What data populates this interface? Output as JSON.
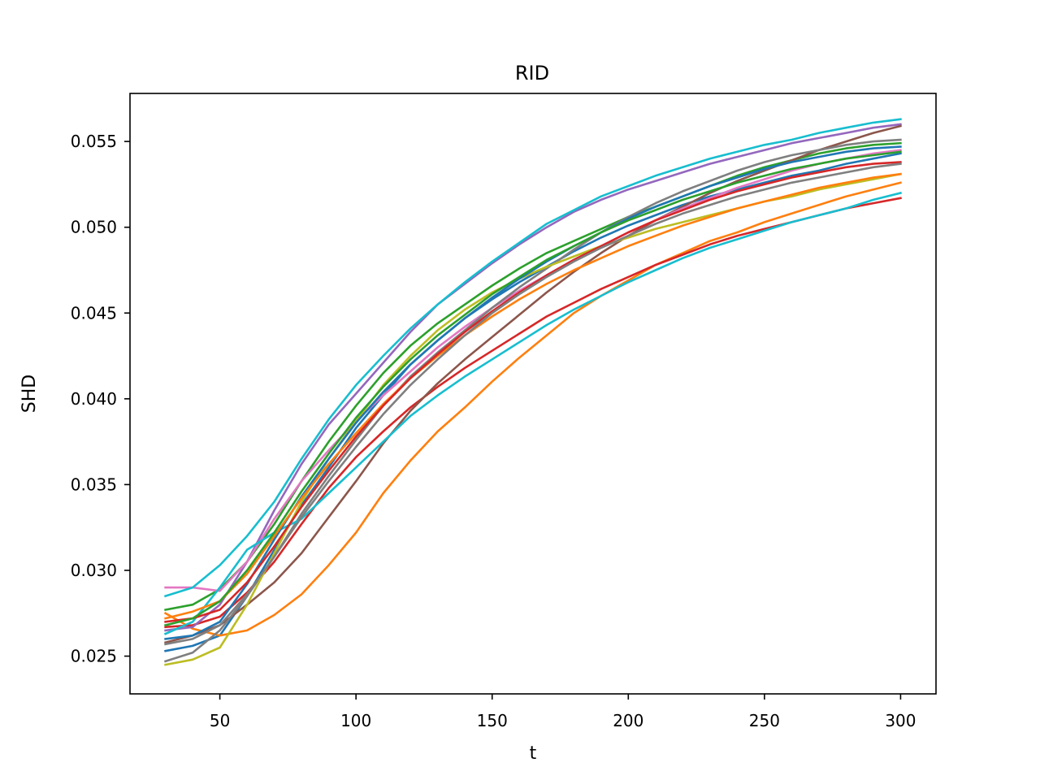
{
  "chart_data": {
    "type": "line",
    "title": "RID",
    "xlabel": "t",
    "ylabel": "SHD",
    "xlim": [
      17,
      313
    ],
    "ylim": [
      0.0228,
      0.0578
    ],
    "xticks": [
      "50",
      "100",
      "150",
      "200",
      "250",
      "300"
    ],
    "yticks": [
      "0.025",
      "0.030",
      "0.035",
      "0.040",
      "0.045",
      "0.050",
      "0.055"
    ],
    "grid": false,
    "legend": "none",
    "x": [
      30,
      40,
      50,
      60,
      70,
      80,
      90,
      100,
      110,
      120,
      130,
      140,
      150,
      160,
      170,
      180,
      190,
      200,
      210,
      220,
      230,
      240,
      250,
      260,
      270,
      280,
      290,
      300
    ],
    "series": [
      {
        "color": "#1f77b4",
        "values": [
          0.0253,
          0.0256,
          0.0262,
          0.0285,
          0.0312,
          0.0338,
          0.036,
          0.0383,
          0.0402,
          0.042,
          0.0434,
          0.0447,
          0.0458,
          0.0468,
          0.0477,
          0.0486,
          0.0494,
          0.0501,
          0.0507,
          0.0513,
          0.0518,
          0.0522,
          0.0526,
          0.053,
          0.0533,
          0.0537,
          0.054,
          0.0543
        ]
      },
      {
        "color": "#ff7f0e",
        "values": [
          0.0275,
          0.0266,
          0.0262,
          0.0265,
          0.0274,
          0.0286,
          0.0303,
          0.0322,
          0.0345,
          0.0364,
          0.0381,
          0.0395,
          0.041,
          0.0424,
          0.0437,
          0.045,
          0.046,
          0.0469,
          0.0478,
          0.0485,
          0.0492,
          0.0497,
          0.0503,
          0.0508,
          0.0513,
          0.0518,
          0.0522,
          0.0526
        ]
      },
      {
        "color": "#2ca02c",
        "values": [
          0.0277,
          0.028,
          0.0289,
          0.0305,
          0.0327,
          0.0352,
          0.0375,
          0.0396,
          0.0415,
          0.0431,
          0.0444,
          0.0455,
          0.0466,
          0.0476,
          0.0485,
          0.0492,
          0.0499,
          0.0506,
          0.0512,
          0.0518,
          0.0524,
          0.053,
          0.0535,
          0.0539,
          0.0543,
          0.0546,
          0.0548,
          0.0549
        ]
      },
      {
        "color": "#d62728",
        "values": [
          0.0267,
          0.0268,
          0.0273,
          0.0287,
          0.0305,
          0.0327,
          0.0348,
          0.0366,
          0.0381,
          0.0395,
          0.0407,
          0.0418,
          0.0428,
          0.0438,
          0.0448,
          0.0456,
          0.0464,
          0.0471,
          0.0478,
          0.0484,
          0.049,
          0.0495,
          0.0499,
          0.0503,
          0.0507,
          0.0511,
          0.0514,
          0.0517
        ]
      },
      {
        "color": "#9467bd",
        "values": [
          0.0265,
          0.0267,
          0.028,
          0.0305,
          0.0335,
          0.0362,
          0.0385,
          0.0403,
          0.0421,
          0.0439,
          0.0455,
          0.0467,
          0.0479,
          0.049,
          0.05,
          0.0509,
          0.0516,
          0.0522,
          0.0527,
          0.0532,
          0.0537,
          0.0541,
          0.0545,
          0.0549,
          0.0552,
          0.0555,
          0.0558,
          0.056
        ]
      },
      {
        "color": "#8c564b",
        "values": [
          0.0258,
          0.0262,
          0.0268,
          0.028,
          0.0293,
          0.031,
          0.0331,
          0.0352,
          0.0374,
          0.0393,
          0.0409,
          0.0423,
          0.0436,
          0.0449,
          0.0462,
          0.0474,
          0.0485,
          0.0495,
          0.0504,
          0.0512,
          0.052,
          0.0527,
          0.0533,
          0.0539,
          0.0545,
          0.055,
          0.0555,
          0.0559
        ]
      },
      {
        "color": "#e377c2",
        "values": [
          0.029,
          0.029,
          0.0288,
          0.0305,
          0.033,
          0.0352,
          0.037,
          0.0387,
          0.0402,
          0.0416,
          0.043,
          0.0442,
          0.0453,
          0.0463,
          0.0472,
          0.0481,
          0.0489,
          0.0497,
          0.0504,
          0.0511,
          0.0517,
          0.0523,
          0.0528,
          0.0533,
          0.0537,
          0.054,
          0.0543,
          0.0545
        ]
      },
      {
        "color": "#7f7f7f",
        "values": [
          0.0247,
          0.0252,
          0.0265,
          0.0285,
          0.0308,
          0.0333,
          0.0355,
          0.0376,
          0.0396,
          0.0413,
          0.0427,
          0.044,
          0.0453,
          0.0465,
          0.0476,
          0.0487,
          0.0497,
          0.0506,
          0.0514,
          0.0521,
          0.0527,
          0.0533,
          0.0538,
          0.0542,
          0.0545,
          0.0548,
          0.055,
          0.0551
        ]
      },
      {
        "color": "#bcbd22",
        "values": [
          0.0245,
          0.0248,
          0.0255,
          0.028,
          0.031,
          0.034,
          0.0365,
          0.0387,
          0.0408,
          0.0425,
          0.044,
          0.0452,
          0.0462,
          0.047,
          0.0477,
          0.0483,
          0.0489,
          0.0494,
          0.0499,
          0.0503,
          0.0507,
          0.0511,
          0.0515,
          0.0518,
          0.0522,
          0.0525,
          0.0528,
          0.0531
        ]
      },
      {
        "color": "#17becf",
        "values": [
          0.0285,
          0.029,
          0.0303,
          0.032,
          0.034,
          0.0365,
          0.0388,
          0.0408,
          0.0425,
          0.0441,
          0.0455,
          0.0468,
          0.048,
          0.0491,
          0.0502,
          0.051,
          0.0518,
          0.0524,
          0.053,
          0.0535,
          0.054,
          0.0544,
          0.0548,
          0.0551,
          0.0555,
          0.0558,
          0.0561,
          0.0563
        ]
      },
      {
        "color": "#17becf",
        "values": [
          0.0263,
          0.027,
          0.029,
          0.0312,
          0.0322,
          0.033,
          0.0345,
          0.036,
          0.0375,
          0.039,
          0.0402,
          0.0413,
          0.0423,
          0.0433,
          0.0443,
          0.0452,
          0.046,
          0.0468,
          0.0475,
          0.0482,
          0.0488,
          0.0493,
          0.0498,
          0.0503,
          0.0507,
          0.0511,
          0.0516,
          0.052
        ]
      },
      {
        "color": "#1f77b4",
        "values": [
          0.026,
          0.0262,
          0.027,
          0.0292,
          0.0318,
          0.0343,
          0.0365,
          0.0386,
          0.0404,
          0.042,
          0.0434,
          0.0447,
          0.0459,
          0.047,
          0.048,
          0.0489,
          0.0497,
          0.0505,
          0.0512,
          0.0518,
          0.0524,
          0.0529,
          0.0534,
          0.0538,
          0.0541,
          0.0544,
          0.0546,
          0.0547
        ]
      },
      {
        "color": "#ff7f0e",
        "values": [
          0.0272,
          0.0276,
          0.0282,
          0.0298,
          0.032,
          0.0342,
          0.0362,
          0.038,
          0.0397,
          0.0412,
          0.0425,
          0.0437,
          0.0448,
          0.0458,
          0.0467,
          0.0475,
          0.0482,
          0.0489,
          0.0495,
          0.0501,
          0.0506,
          0.0511,
          0.0515,
          0.0519,
          0.0523,
          0.0526,
          0.0529,
          0.0531
        ]
      },
      {
        "color": "#d62728",
        "values": [
          0.027,
          0.0272,
          0.0277,
          0.0293,
          0.0314,
          0.0337,
          0.0358,
          0.0378,
          0.0396,
          0.0412,
          0.0426,
          0.0439,
          0.0451,
          0.0462,
          0.0472,
          0.0481,
          0.0489,
          0.0497,
          0.0504,
          0.051,
          0.0516,
          0.0521,
          0.0525,
          0.0529,
          0.0532,
          0.0535,
          0.0537,
          0.0538
        ]
      },
      {
        "color": "#2ca02c",
        "values": [
          0.0268,
          0.0272,
          0.0282,
          0.03,
          0.0322,
          0.0346,
          0.0368,
          0.0389,
          0.0407,
          0.0423,
          0.0437,
          0.0449,
          0.0461,
          0.0471,
          0.0481,
          0.0489,
          0.0497,
          0.0504,
          0.051,
          0.0516,
          0.0521,
          0.0526,
          0.053,
          0.0534,
          0.0537,
          0.054,
          0.0542,
          0.0544
        ]
      },
      {
        "color": "#7f7f7f",
        "values": [
          0.0257,
          0.026,
          0.0268,
          0.0286,
          0.0308,
          0.0331,
          0.0352,
          0.0372,
          0.0391,
          0.0408,
          0.0423,
          0.0437,
          0.045,
          0.0461,
          0.0471,
          0.048,
          0.0488,
          0.0495,
          0.0502,
          0.0508,
          0.0513,
          0.0518,
          0.0522,
          0.0526,
          0.0529,
          0.0532,
          0.0535,
          0.0537
        ]
      }
    ]
  }
}
